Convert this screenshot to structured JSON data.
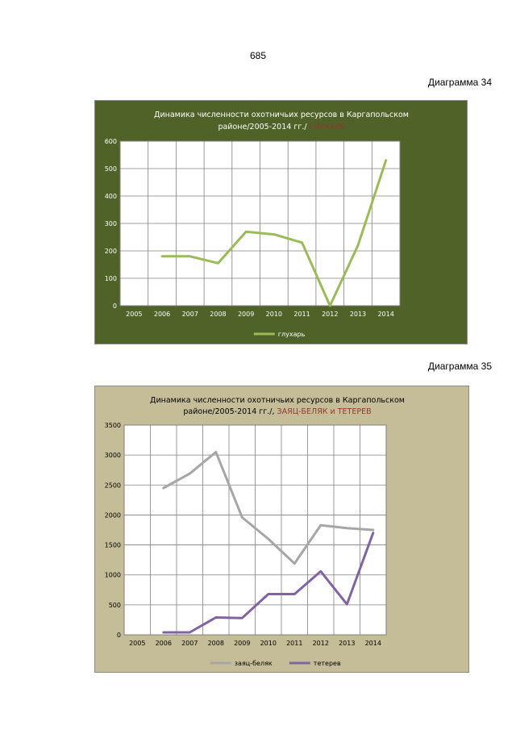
{
  "page_number": "685",
  "diagram_labels": [
    "Диаграмма 34",
    "Диаграмма 35"
  ],
  "colors": {
    "chart1_background": "#4f6228",
    "chart2_background": "#c4bd97",
    "grouse_line": "#9bbb59",
    "hare_line": "#a6a6a6",
    "blackgrouse_line": "#8064a2",
    "highlight_text": "#953735"
  },
  "chart_data": [
    {
      "type": "line",
      "title_line1": "Динамика численности охотничьих ресурсов в Каргапольском",
      "title_line2_plain": "районе/2005-2014 гг./ ",
      "title_line2_highlight": "ГЛУХАРЬ",
      "categories": [
        "2005",
        "2006",
        "2007",
        "2008",
        "2009",
        "2010",
        "2011",
        "2012",
        "2013",
        "2014"
      ],
      "series": [
        {
          "name": "глухарь",
          "values": [
            null,
            180,
            180,
            155,
            270,
            260,
            230,
            0,
            220,
            530
          ]
        }
      ],
      "y_ticks": [
        "0",
        "100",
        "200",
        "300",
        "400",
        "500",
        "600"
      ],
      "ylim": [
        0,
        600
      ],
      "grid": true,
      "legend_position": "bottom"
    },
    {
      "type": "line",
      "title_line1": "Динамика численности охотничьих ресурсов в Каргапольском",
      "title_line2_plain": "районе/2005-2014 гг./, ",
      "title_line2_highlight": "ЗАЯЦ-БЕЛЯК и ТЕТЕРЕВ",
      "categories": [
        "2005",
        "2006",
        "2007",
        "2008",
        "2009",
        "2010",
        "2011",
        "2012",
        "2013",
        "2014"
      ],
      "series": [
        {
          "name": "заяц-беляк",
          "values": [
            null,
            2450,
            2690,
            3050,
            1960,
            1600,
            1190,
            1830,
            1780,
            1750
          ]
        },
        {
          "name": "тетерев",
          "values": [
            null,
            40,
            40,
            290,
            280,
            680,
            680,
            1060,
            510,
            1700
          ]
        }
      ],
      "y_ticks": [
        "0",
        "500",
        "1000",
        "1500",
        "2000",
        "2500",
        "3000",
        "3500"
      ],
      "ylim": [
        0,
        3500
      ],
      "grid": true,
      "legend_position": "bottom"
    }
  ]
}
